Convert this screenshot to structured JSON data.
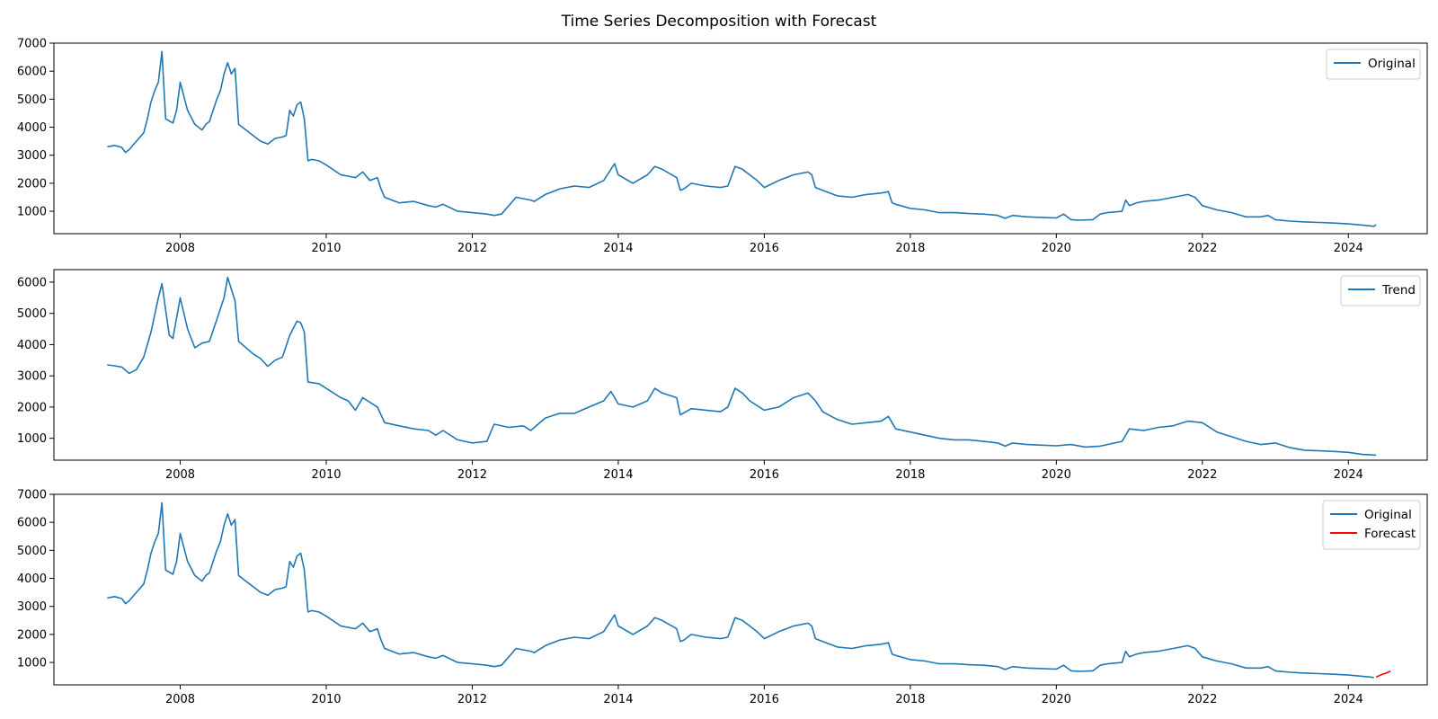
{
  "figure": {
    "title": "Time Series Decomposition with Forecast"
  },
  "colors": {
    "series": "#1f77b4",
    "forecast": "#ff0000",
    "axes": "#000000",
    "background": "#ffffff"
  },
  "chart_data": [
    {
      "type": "line",
      "title": "",
      "xlabel": "",
      "ylabel": "",
      "grid": false,
      "legend_position": "top-right",
      "xlim": [
        2006.27,
        2025.08
      ],
      "ylim": [
        200,
        7000
      ],
      "x_ticks": [
        2008,
        2010,
        2012,
        2014,
        2016,
        2018,
        2020,
        2022,
        2024
      ],
      "x_tick_labels": [
        "2008",
        "2010",
        "2012",
        "2014",
        "2016",
        "2018",
        "2020",
        "2022",
        "2024"
      ],
      "y_ticks": [
        1000,
        2000,
        3000,
        4000,
        5000,
        6000,
        7000
      ],
      "y_tick_labels": [
        "1000",
        "2000",
        "3000",
        "4000",
        "5000",
        "6000",
        "7000"
      ],
      "series": [
        {
          "name": "Original",
          "color": "#1f77b4",
          "x": [
            2007.0,
            2007.1,
            2007.2,
            2007.25,
            2007.3,
            2007.4,
            2007.5,
            2007.55,
            2007.6,
            2007.65,
            2007.7,
            2007.75,
            2007.8,
            2007.9,
            2007.95,
            2008.0,
            2008.1,
            2008.2,
            2008.3,
            2008.35,
            2008.4,
            2008.5,
            2008.55,
            2008.6,
            2008.65,
            2008.7,
            2008.75,
            2008.8,
            2008.9,
            2009.0,
            2009.1,
            2009.2,
            2009.3,
            2009.4,
            2009.45,
            2009.5,
            2009.55,
            2009.6,
            2009.65,
            2009.7,
            2009.75,
            2009.8,
            2009.9,
            2010.0,
            2010.2,
            2010.4,
            2010.5,
            2010.6,
            2010.7,
            2010.75,
            2010.8,
            2010.9,
            2011.0,
            2011.2,
            2011.4,
            2011.5,
            2011.6,
            2011.8,
            2012.0,
            2012.2,
            2012.3,
            2012.4,
            2012.6,
            2012.8,
            2012.85,
            2013.0,
            2013.2,
            2013.4,
            2013.6,
            2013.8,
            2013.9,
            2013.95,
            2014.0,
            2014.2,
            2014.4,
            2014.5,
            2014.6,
            2014.8,
            2014.85,
            2014.9,
            2015.0,
            2015.2,
            2015.4,
            2015.5,
            2015.6,
            2015.7,
            2015.8,
            2015.9,
            2016.0,
            2016.2,
            2016.4,
            2016.6,
            2016.65,
            2016.7,
            2016.8,
            2017.0,
            2017.2,
            2017.4,
            2017.6,
            2017.7,
            2017.75,
            2017.8,
            2018.0,
            2018.2,
            2018.4,
            2018.6,
            2018.8,
            2019.0,
            2019.2,
            2019.3,
            2019.4,
            2019.6,
            2019.8,
            2020.0,
            2020.1,
            2020.2,
            2020.3,
            2020.5,
            2020.6,
            2020.7,
            2020.9,
            2020.95,
            2021.0,
            2021.1,
            2021.2,
            2021.4,
            2021.6,
            2021.8,
            2021.9,
            2022.0,
            2022.2,
            2022.4,
            2022.6,
            2022.8,
            2022.9,
            2023.0,
            2023.2,
            2023.4,
            2023.6,
            2023.8,
            2024.0,
            2024.2,
            2024.3,
            2024.35,
            2024.38
          ],
          "values": [
            3300,
            3350,
            3280,
            3100,
            3200,
            3500,
            3800,
            4300,
            4900,
            5300,
            5600,
            6700,
            4300,
            4150,
            4600,
            5600,
            4600,
            4100,
            3900,
            4100,
            4200,
            5000,
            5300,
            5900,
            6300,
            5900,
            6100,
            4100,
            3900,
            3700,
            3500,
            3400,
            3600,
            3650,
            3700,
            4600,
            4400,
            4800,
            4900,
            4300,
            2800,
            2850,
            2800,
            2650,
            2300,
            2200,
            2400,
            2100,
            2200,
            1800,
            1500,
            1400,
            1300,
            1350,
            1200,
            1150,
            1250,
            1000,
            950,
            900,
            850,
            900,
            1500,
            1400,
            1350,
            1600,
            1800,
            1900,
            1850,
            2100,
            2500,
            2700,
            2300,
            2000,
            2300,
            2600,
            2500,
            2200,
            1750,
            1800,
            2000,
            1900,
            1850,
            1900,
            2600,
            2500,
            2300,
            2100,
            1850,
            2100,
            2300,
            2400,
            2300,
            1850,
            1750,
            1550,
            1500,
            1600,
            1650,
            1700,
            1300,
            1250,
            1100,
            1050,
            950,
            950,
            920,
            900,
            850,
            750,
            850,
            800,
            780,
            760,
            900,
            700,
            680,
            700,
            900,
            950,
            1000,
            1400,
            1200,
            1300,
            1350,
            1400,
            1500,
            1600,
            1500,
            1200,
            1050,
            950,
            800,
            800,
            850,
            700,
            650,
            620,
            600,
            580,
            550,
            500,
            480,
            460,
            520
          ]
        }
      ]
    },
    {
      "type": "line",
      "title": "",
      "xlabel": "",
      "ylabel": "",
      "grid": false,
      "legend_position": "top-right",
      "xlim": [
        2006.27,
        2025.08
      ],
      "ylim": [
        300,
        6400
      ],
      "x_ticks": [
        2008,
        2010,
        2012,
        2014,
        2016,
        2018,
        2020,
        2022,
        2024
      ],
      "x_tick_labels": [
        "2008",
        "2010",
        "2012",
        "2014",
        "2016",
        "2018",
        "2020",
        "2022",
        "2024"
      ],
      "y_ticks": [
        1000,
        2000,
        3000,
        4000,
        5000,
        6000
      ],
      "y_tick_labels": [
        "1000",
        "2000",
        "3000",
        "4000",
        "5000",
        "6000"
      ],
      "series": [
        {
          "name": "Trend",
          "color": "#1f77b4",
          "x": [
            2007.0,
            2007.1,
            2007.2,
            2007.3,
            2007.4,
            2007.5,
            2007.6,
            2007.7,
            2007.75,
            2007.85,
            2007.9,
            2008.0,
            2008.1,
            2008.2,
            2008.3,
            2008.4,
            2008.5,
            2008.6,
            2008.65,
            2008.75,
            2008.8,
            2009.0,
            2009.1,
            2009.2,
            2009.3,
            2009.4,
            2009.5,
            2009.6,
            2009.65,
            2009.7,
            2009.75,
            2009.9,
            2010.0,
            2010.2,
            2010.3,
            2010.4,
            2010.5,
            2010.7,
            2010.8,
            2011.0,
            2011.2,
            2011.4,
            2011.5,
            2011.6,
            2011.8,
            2012.0,
            2012.2,
            2012.3,
            2012.5,
            2012.7,
            2012.8,
            2013.0,
            2013.2,
            2013.4,
            2013.6,
            2013.8,
            2013.9,
            2014.0,
            2014.2,
            2014.4,
            2014.5,
            2014.6,
            2014.8,
            2014.85,
            2015.0,
            2015.2,
            2015.4,
            2015.5,
            2015.6,
            2015.7,
            2015.8,
            2016.0,
            2016.2,
            2016.4,
            2016.6,
            2016.7,
            2016.8,
            2017.0,
            2017.2,
            2017.4,
            2017.6,
            2017.7,
            2017.8,
            2018.0,
            2018.2,
            2018.4,
            2018.6,
            2018.8,
            2019.0,
            2019.2,
            2019.3,
            2019.4,
            2019.6,
            2019.8,
            2020.0,
            2020.2,
            2020.4,
            2020.6,
            2020.8,
            2020.9,
            2021.0,
            2021.2,
            2021.4,
            2021.6,
            2021.8,
            2022.0,
            2022.2,
            2022.4,
            2022.6,
            2022.8,
            2023.0,
            2023.2,
            2023.4,
            2023.6,
            2023.8,
            2024.0,
            2024.2,
            2024.38
          ],
          "values": [
            3350,
            3320,
            3280,
            3080,
            3200,
            3600,
            4400,
            5500,
            5950,
            4300,
            4200,
            5500,
            4500,
            3900,
            4050,
            4100,
            4800,
            5500,
            6150,
            5400,
            4100,
            3700,
            3550,
            3300,
            3500,
            3600,
            4300,
            4750,
            4700,
            4400,
            2800,
            2750,
            2600,
            2300,
            2200,
            1900,
            2300,
            2000,
            1500,
            1400,
            1300,
            1250,
            1100,
            1250,
            950,
            850,
            900,
            1450,
            1350,
            1400,
            1250,
            1650,
            1800,
            1800,
            2000,
            2200,
            2500,
            2100,
            2000,
            2200,
            2600,
            2450,
            2300,
            1750,
            1950,
            1900,
            1850,
            2000,
            2600,
            2450,
            2200,
            1900,
            2000,
            2300,
            2450,
            2200,
            1850,
            1600,
            1450,
            1500,
            1550,
            1700,
            1300,
            1200,
            1100,
            1000,
            950,
            950,
            900,
            850,
            750,
            850,
            800,
            780,
            760,
            800,
            720,
            750,
            850,
            900,
            1300,
            1250,
            1350,
            1400,
            1550,
            1500,
            1200,
            1050,
            900,
            800,
            850,
            700,
            620,
            600,
            580,
            550,
            480,
            460
          ]
        }
      ]
    },
    {
      "type": "line",
      "title": "",
      "xlabel": "",
      "ylabel": "",
      "grid": false,
      "legend_position": "top-right",
      "xlim": [
        2006.27,
        2025.08
      ],
      "ylim": [
        200,
        7000
      ],
      "x_ticks": [
        2008,
        2010,
        2012,
        2014,
        2016,
        2018,
        2020,
        2022,
        2024
      ],
      "x_tick_labels": [
        "2008",
        "2010",
        "2012",
        "2014",
        "2016",
        "2018",
        "2020",
        "2022",
        "2024"
      ],
      "y_ticks": [
        1000,
        2000,
        3000,
        4000,
        5000,
        6000,
        7000
      ],
      "y_tick_labels": [
        "1000",
        "2000",
        "3000",
        "4000",
        "5000",
        "6000",
        "7000"
      ],
      "series": [
        {
          "name": "Original",
          "color": "#1f77b4",
          "x": [
            2007.0,
            2007.1,
            2007.2,
            2007.25,
            2007.3,
            2007.4,
            2007.5,
            2007.55,
            2007.6,
            2007.65,
            2007.7,
            2007.75,
            2007.8,
            2007.9,
            2007.95,
            2008.0,
            2008.1,
            2008.2,
            2008.3,
            2008.35,
            2008.4,
            2008.5,
            2008.55,
            2008.6,
            2008.65,
            2008.7,
            2008.75,
            2008.8,
            2008.9,
            2009.0,
            2009.1,
            2009.2,
            2009.3,
            2009.4,
            2009.45,
            2009.5,
            2009.55,
            2009.6,
            2009.65,
            2009.7,
            2009.75,
            2009.8,
            2009.9,
            2010.0,
            2010.2,
            2010.4,
            2010.5,
            2010.6,
            2010.7,
            2010.75,
            2010.8,
            2010.9,
            2011.0,
            2011.2,
            2011.4,
            2011.5,
            2011.6,
            2011.8,
            2012.0,
            2012.2,
            2012.3,
            2012.4,
            2012.6,
            2012.8,
            2012.85,
            2013.0,
            2013.2,
            2013.4,
            2013.6,
            2013.8,
            2013.9,
            2013.95,
            2014.0,
            2014.2,
            2014.4,
            2014.5,
            2014.6,
            2014.8,
            2014.85,
            2014.9,
            2015.0,
            2015.2,
            2015.4,
            2015.5,
            2015.6,
            2015.7,
            2015.8,
            2015.9,
            2016.0,
            2016.2,
            2016.4,
            2016.6,
            2016.65,
            2016.7,
            2016.8,
            2017.0,
            2017.2,
            2017.4,
            2017.6,
            2017.7,
            2017.75,
            2017.8,
            2018.0,
            2018.2,
            2018.4,
            2018.6,
            2018.8,
            2019.0,
            2019.2,
            2019.3,
            2019.4,
            2019.6,
            2019.8,
            2020.0,
            2020.1,
            2020.2,
            2020.3,
            2020.5,
            2020.6,
            2020.7,
            2020.9,
            2020.95,
            2021.0,
            2021.1,
            2021.2,
            2021.4,
            2021.6,
            2021.8,
            2021.9,
            2022.0,
            2022.2,
            2022.4,
            2022.6,
            2022.8,
            2022.9,
            2023.0,
            2023.2,
            2023.4,
            2023.6,
            2023.8,
            2024.0,
            2024.2,
            2024.3,
            2024.35
          ],
          "values": [
            3300,
            3350,
            3280,
            3100,
            3200,
            3500,
            3800,
            4300,
            4900,
            5300,
            5600,
            6700,
            4300,
            4150,
            4600,
            5600,
            4600,
            4100,
            3900,
            4100,
            4200,
            5000,
            5300,
            5900,
            6300,
            5900,
            6100,
            4100,
            3900,
            3700,
            3500,
            3400,
            3600,
            3650,
            3700,
            4600,
            4400,
            4800,
            4900,
            4300,
            2800,
            2850,
            2800,
            2650,
            2300,
            2200,
            2400,
            2100,
            2200,
            1800,
            1500,
            1400,
            1300,
            1350,
            1200,
            1150,
            1250,
            1000,
            950,
            900,
            850,
            900,
            1500,
            1400,
            1350,
            1600,
            1800,
            1900,
            1850,
            2100,
            2500,
            2700,
            2300,
            2000,
            2300,
            2600,
            2500,
            2200,
            1750,
            1800,
            2000,
            1900,
            1850,
            1900,
            2600,
            2500,
            2300,
            2100,
            1850,
            2100,
            2300,
            2400,
            2300,
            1850,
            1750,
            1550,
            1500,
            1600,
            1650,
            1700,
            1300,
            1250,
            1100,
            1050,
            950,
            950,
            920,
            900,
            850,
            750,
            850,
            800,
            780,
            760,
            900,
            700,
            680,
            700,
            900,
            950,
            1000,
            1400,
            1200,
            1300,
            1350,
            1400,
            1500,
            1600,
            1500,
            1200,
            1050,
            950,
            800,
            800,
            850,
            700,
            650,
            620,
            600,
            580,
            550,
            500,
            480,
            460
          ]
        },
        {
          "name": "Forecast",
          "color": "#ff0000",
          "x": [
            2024.38,
            2024.45,
            2024.52,
            2024.58
          ],
          "values": [
            480,
            560,
            620,
            690
          ]
        }
      ]
    }
  ]
}
